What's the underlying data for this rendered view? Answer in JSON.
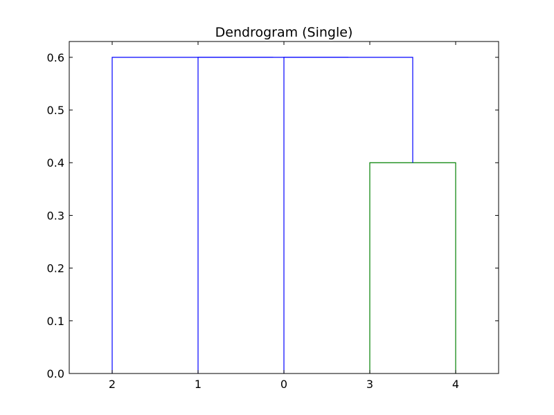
{
  "chart_data": {
    "type": "dendrogram",
    "title": "Dendrogram (Single)",
    "xlabel": "",
    "ylabel": "",
    "leaf_order": [
      "2",
      "1",
      "0",
      "3",
      "4"
    ],
    "yticks": [
      "0.0",
      "0.1",
      "0.2",
      "0.3",
      "0.4",
      "0.5",
      "0.6"
    ],
    "ylim": [
      0,
      0.63
    ],
    "grid": false,
    "links": [
      {
        "join": [
          "3",
          "4"
        ],
        "height": 0.4,
        "color": "#008000"
      },
      {
        "join": [
          "0",
          "3+4"
        ],
        "height": 0.6,
        "color": "#0000ff"
      },
      {
        "join": [
          "1",
          "0+3+4"
        ],
        "height": 0.6,
        "color": "#0000ff"
      },
      {
        "join": [
          "2",
          "1+0+3+4"
        ],
        "height": 0.6,
        "color": "#0000ff"
      }
    ]
  }
}
